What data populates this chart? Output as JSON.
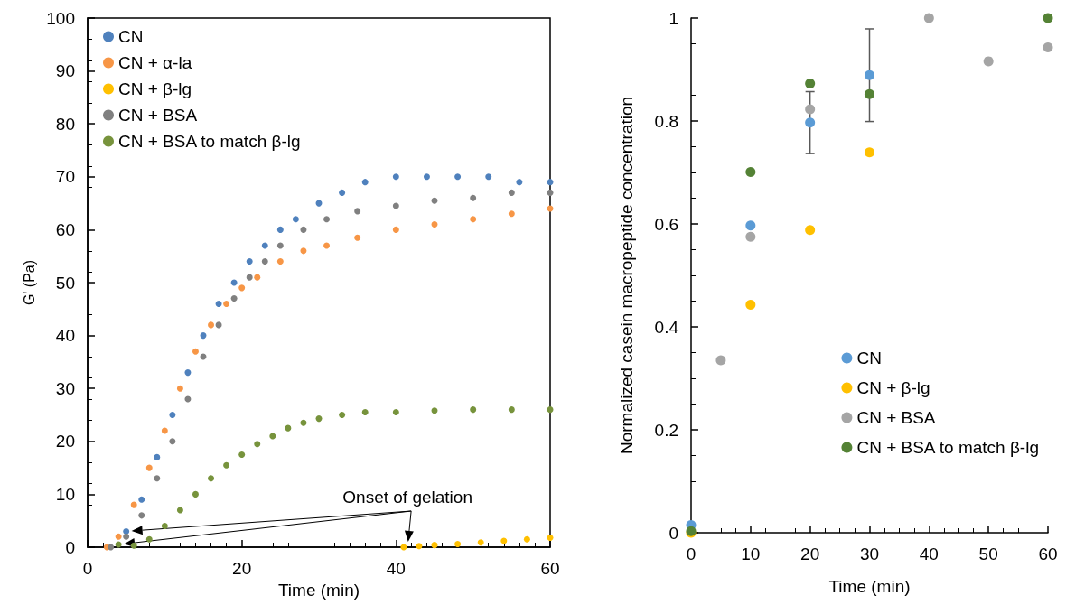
{
  "chart_data": [
    {
      "type": "scatter",
      "xlabel": "Time (min)",
      "ylabel": "G' (Pa)",
      "xlim": [
        0,
        60
      ],
      "xticks": [
        0,
        20,
        40,
        60
      ],
      "ylim": [
        0,
        100
      ],
      "yticks": [
        0,
        10,
        20,
        30,
        40,
        50,
        60,
        70,
        80,
        90,
        100
      ],
      "grid": false,
      "legend": "top left",
      "marker": "circle",
      "annotations": [
        {
          "text": "Onset of gelation",
          "x": 41.5,
          "y": 0
        }
      ],
      "series": [
        {
          "name": "CN",
          "color": "#4f81bd",
          "x": [
            5,
            7,
            9,
            11,
            13,
            15,
            17,
            19,
            21,
            23,
            25,
            27,
            30,
            33,
            36,
            40,
            44,
            48,
            52,
            56,
            60
          ],
          "values": [
            3,
            9,
            17,
            25,
            33,
            40,
            46,
            50,
            54,
            57,
            60,
            62,
            65,
            67,
            69,
            70,
            70,
            70,
            70,
            69,
            69
          ]
        },
        {
          "name": "CN + α-la",
          "color": "#f79646",
          "x": [
            2.5,
            4,
            6,
            8,
            10,
            12,
            14,
            16,
            18,
            20,
            22,
            25,
            28,
            31,
            35,
            40,
            45,
            50,
            55,
            60
          ],
          "values": [
            0,
            2,
            8,
            15,
            22,
            30,
            37,
            42,
            46,
            49,
            51,
            54,
            56,
            57,
            58.5,
            60,
            61,
            62,
            63,
            64
          ]
        },
        {
          "name": "CN + β-lg",
          "color": "#ffc000",
          "x": [
            41,
            43,
            45,
            48,
            51,
            54,
            57,
            60
          ],
          "values": [
            0,
            0.2,
            0.4,
            0.6,
            0.9,
            1.2,
            1.5,
            1.8
          ]
        },
        {
          "name": "CN + BSA",
          "color": "#808080",
          "x": [
            3,
            5,
            7,
            9,
            11,
            13,
            15,
            17,
            19,
            21,
            23,
            25,
            28,
            31,
            35,
            40,
            45,
            50,
            55,
            60
          ],
          "values": [
            0,
            2,
            6,
            13,
            20,
            28,
            36,
            42,
            47,
            51,
            54,
            57,
            60,
            62,
            63.5,
            64.5,
            65.5,
            66,
            67,
            67
          ]
        },
        {
          "name": "CN + BSA to match β-lg",
          "color": "#77933c",
          "x": [
            4,
            6,
            8,
            10,
            12,
            14,
            16,
            18,
            20,
            22,
            24,
            26,
            28,
            30,
            33,
            36,
            40,
            45,
            50,
            55,
            60
          ],
          "values": [
            0.5,
            0.3,
            1.5,
            4,
            7,
            10,
            13,
            15.5,
            17.5,
            19.5,
            21,
            22.5,
            23.5,
            24.3,
            25,
            25.5,
            25.5,
            25.8,
            26,
            26,
            26
          ]
        }
      ]
    },
    {
      "type": "scatter",
      "xlabel": "Time (min)",
      "ylabel": "Normalized casein macropeptide concentration",
      "xlim": [
        0,
        60
      ],
      "xticks": [
        0,
        10,
        20,
        30,
        40,
        50,
        60
      ],
      "ylim": [
        0,
        1
      ],
      "yticks": [
        0,
        0.2,
        0.4,
        0.6,
        0.8,
        1
      ],
      "grid": false,
      "legend": "bottom right",
      "marker": "circle",
      "series": [
        {
          "name": "CN",
          "color": "#5b9bd5",
          "x": [
            0,
            10,
            20,
            30
          ],
          "values": [
            0.015,
            0.597,
            0.797,
            0.889
          ],
          "errors": [
            null,
            null,
            0.06,
            0.09
          ]
        },
        {
          "name": "CN + β-lg",
          "color": "#ffc000",
          "x": [
            0,
            10,
            20,
            30
          ],
          "values": [
            0,
            0.443,
            0.588,
            0.739
          ]
        },
        {
          "name": "CN + BSA",
          "color": "#a5a5a5",
          "x": [
            5,
            10,
            20,
            40,
            50,
            60
          ],
          "values": [
            0.335,
            0.575,
            0.823,
            1.0,
            0.916,
            0.943
          ]
        },
        {
          "name": "CN + BSA to match β-lg",
          "color": "#548235",
          "x": [
            0,
            10,
            20,
            30,
            60
          ],
          "values": [
            0.003,
            0.701,
            0.873,
            0.852,
            1.0
          ]
        }
      ]
    }
  ]
}
